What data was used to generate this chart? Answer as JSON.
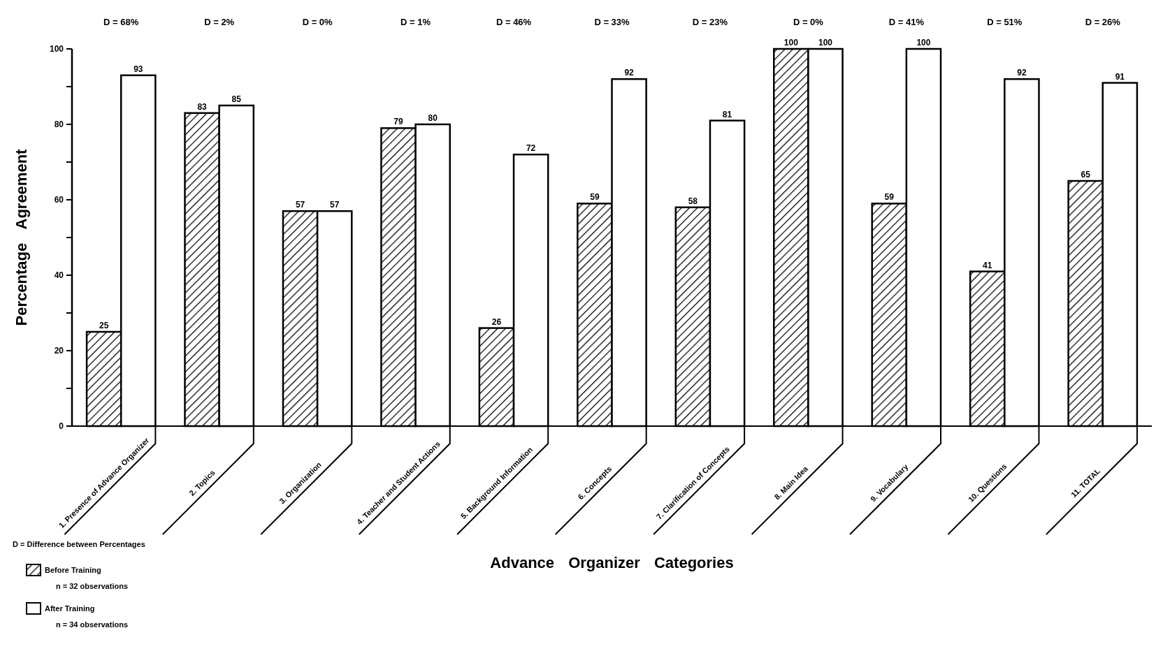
{
  "chart_data": {
    "type": "bar",
    "xlabel": "Advance Organizer Categories",
    "ylabel": "Percentage Agreement",
    "categories": [
      "1. Presence of Advance Organizer",
      "2. Topics",
      "3. Organization",
      "4. Teacher and Student Actions",
      "5. Background Information",
      "6. Concepts",
      "7. Clarification of Concepts",
      "8. Main Idea",
      "9. Vocabulary",
      "10. Questions",
      "11. TOTAL"
    ],
    "series": [
      {
        "name": "Before Training",
        "color": "#000000",
        "values": [
          25,
          83,
          57,
          79,
          26,
          59,
          58,
          100,
          59,
          41,
          65
        ]
      },
      {
        "name": "After Training",
        "color": "#ffffff",
        "values": [
          93,
          85,
          57,
          80,
          72,
          92,
          81,
          100,
          100,
          92,
          91
        ]
      }
    ],
    "ylim": [
      0,
      100
    ],
    "yticks": [
      0,
      {
        "value": 10,
        "label": null
      },
      20,
      {
        "value": 30,
        "label": null
      },
      40,
      {
        "value": 50,
        "label": null
      },
      60,
      {
        "value": 70,
        "label": null
      },
      80,
      {
        "value": 90,
        "label": null
      },
      100
    ],
    "data_labels": true,
    "grid": false,
    "legend": "bottom left",
    "annotations": [
      "D = 68%",
      "D = 2%",
      "D = 0%",
      "D = 1%",
      "D = 46%",
      "D = 33%",
      "D = 23%",
      "D = 0%",
      "D = 41%",
      "D = 51%",
      "D = 26%",
      "D = Difference between Percentages",
      "n = 32 observations",
      "n = 34 observations"
    ]
  }
}
